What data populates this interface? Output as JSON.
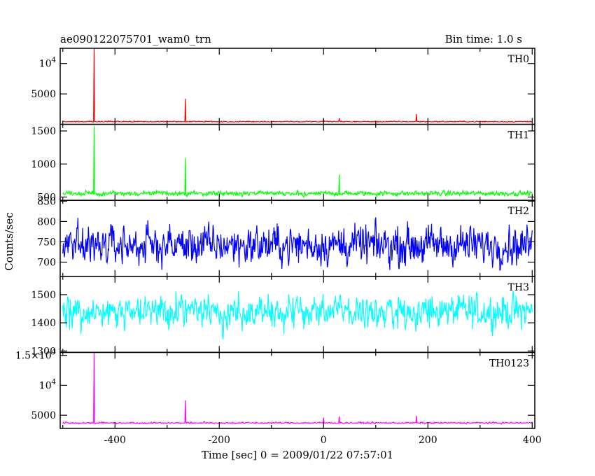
{
  "chart_data": [
    {
      "type": "line",
      "title": "ae090122075701_wam0_trn",
      "subtitle": "Bin time: 1.0 s",
      "xlabel": "Time [sec] 0 = 2009/01/22 07:57:01",
      "ylabel": "Counts/sec",
      "xlim": [
        -505,
        405
      ],
      "xticks": [
        "-400",
        "-200",
        "0",
        "200",
        "400"
      ],
      "panels": [
        {
          "name": "TH0",
          "color": "#ff0000",
          "ylim": [
            0,
            12500
          ],
          "yticks": [
            {
              "v": 5000,
              "label": "5000"
            },
            {
              "v": 10000,
              "label": "10^4"
            }
          ],
          "base": 450,
          "noise": 60,
          "spikes": [
            [
              -440,
              12500
            ],
            [
              -265,
              4200
            ],
            [
              0,
              900
            ],
            [
              30,
              1000
            ],
            [
              178,
              1700
            ]
          ]
        },
        {
          "name": "TH1",
          "color": "#00ff00",
          "ylim": [
            450,
            1600
          ],
          "yticks": [
            {
              "v": 500,
              "label": "500"
            },
            {
              "v": 1000,
              "label": "1000"
            },
            {
              "v": 1500,
              "label": "1500"
            }
          ],
          "base": 555,
          "noise": 25,
          "spikes": [
            [
              -440,
              1570
            ],
            [
              -265,
              1090
            ],
            [
              30,
              840
            ]
          ]
        },
        {
          "name": "TH2",
          "color": "#0000ff",
          "ylim": [
            665,
            852
          ],
          "yticks": [
            {
              "v": 700,
              "label": "700"
            },
            {
              "v": 750,
              "label": "750"
            },
            {
              "v": 800,
              "label": "800"
            },
            {
              "v": 850,
              "label": "850"
            }
          ],
          "base": 742,
          "noise": 32,
          "spikes": []
        },
        {
          "name": "TH3",
          "color": "#00ffff",
          "ylim": [
            1295,
            1565
          ],
          "yticks": [
            {
              "v": 1300,
              "label": "1300"
            },
            {
              "v": 1400,
              "label": "1400"
            },
            {
              "v": 1500,
              "label": "1500"
            }
          ],
          "base": 1440,
          "noise": 40,
          "spikes": []
        },
        {
          "name": "TH0123",
          "color": "#ff00ff",
          "ylim": [
            2800,
            15500
          ],
          "yticks": [
            {
              "v": 5000,
              "label": "5000"
            },
            {
              "v": 10000,
              "label": "10^4"
            },
            {
              "v": 15000,
              "label": "1.5×10^4"
            }
          ],
          "base": 3720,
          "noise": 90,
          "spikes": [
            [
              -440,
              15500
            ],
            [
              -265,
              7500
            ],
            [
              0,
              4600
            ],
            [
              30,
              4800
            ],
            [
              178,
              4900
            ]
          ]
        }
      ]
    }
  ]
}
